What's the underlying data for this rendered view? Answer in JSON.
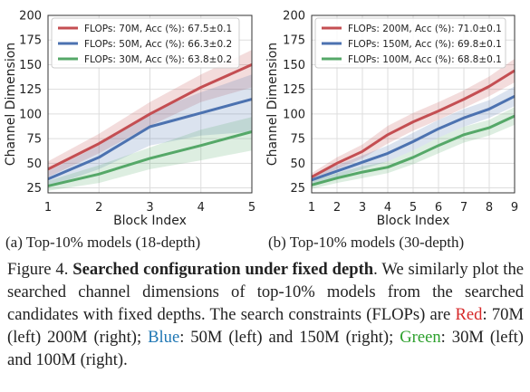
{
  "chart_data": [
    {
      "type": "line",
      "xlabel": "Block Index",
      "ylabel": "Channel Dimension",
      "x": [
        1,
        2,
        3,
        4,
        5
      ],
      "xlim": [
        1,
        5
      ],
      "ylim": [
        20,
        200
      ],
      "yticks": [
        25,
        50,
        75,
        100,
        125,
        150,
        175,
        200
      ],
      "grid": true,
      "legend": "top-left",
      "series": [
        {
          "name": "FLOPs: 70M, Acc (%): 67.5±0.1",
          "color": "#c44e52",
          "values": [
            44,
            70,
            100,
            127,
            150
          ],
          "lower": [
            36,
            60,
            88,
            112,
            127
          ],
          "upper": [
            52,
            80,
            112,
            140,
            165
          ]
        },
        {
          "name": "FLOPs: 50M, Acc (%): 66.3±0.2",
          "color": "#4c72b0",
          "values": [
            34,
            56,
            87,
            101,
            115
          ],
          "lower": [
            26,
            44,
            68,
            78,
            82
          ],
          "upper": [
            42,
            68,
            102,
            122,
            140
          ]
        },
        {
          "name": "FLOPs: 30M, Acc (%): 63.8±0.2",
          "color": "#55a868",
          "values": [
            27,
            39,
            55,
            68,
            82
          ],
          "lower": [
            22,
            30,
            44,
            53,
            63
          ],
          "upper": [
            32,
            48,
            66,
            84,
            97
          ]
        }
      ]
    },
    {
      "type": "line",
      "xlabel": "Block Index",
      "ylabel": "Channel Dimension",
      "x": [
        1,
        2,
        3,
        4,
        5,
        6,
        7,
        8,
        9
      ],
      "xlim": [
        1,
        9
      ],
      "ylim": [
        20,
        200
      ],
      "yticks": [
        25,
        50,
        75,
        100,
        125,
        150,
        175,
        200
      ],
      "grid": true,
      "legend": "top-left",
      "series": [
        {
          "name": "FLOPs: 200M, Acc (%): 71.0±0.1",
          "color": "#c44e52",
          "values": [
            36,
            50,
            62,
            79,
            92,
            103,
            115,
            128,
            144
          ],
          "lower": [
            32,
            44,
            55,
            70,
            83,
            94,
            106,
            118,
            132
          ],
          "upper": [
            40,
            56,
            69,
            88,
            101,
            112,
            124,
            138,
            156
          ]
        },
        {
          "name": "FLOPs: 150M, Acc (%): 69.8±0.1",
          "color": "#4c72b0",
          "values": [
            33,
            42,
            51,
            60,
            72,
            85,
            96,
            105,
            118
          ],
          "lower": [
            29,
            36,
            44,
            52,
            63,
            76,
            87,
            96,
            108
          ],
          "upper": [
            37,
            48,
            58,
            68,
            81,
            94,
            105,
            114,
            128
          ]
        },
        {
          "name": "FLOPs: 100M, Acc (%): 68.8±0.1",
          "color": "#55a868",
          "values": [
            28,
            35,
            41,
            46,
            56,
            68,
            79,
            86,
            98
          ],
          "lower": [
            24,
            30,
            35,
            40,
            49,
            60,
            71,
            78,
            89
          ],
          "upper": [
            32,
            40,
            47,
            52,
            63,
            76,
            87,
            94,
            107
          ]
        }
      ]
    }
  ],
  "subcaptions": {
    "a": "(a) Top-10% models (18-depth)",
    "b": "(b) Top-10% models (30-depth)"
  },
  "caption": {
    "label": "Figure 4.",
    "title": "Searched configuration under fixed depth",
    "body1": ". We similarly plot the searched channel dimensions of top-10% models from the searched candidates with fixed depths. The search constraints (FLOPs) are ",
    "red_word": "Red",
    "red_text": ": 70M (left) 200M (right); ",
    "blue_word": "Blue",
    "blue_text": ": 50M (left) and 150M (right); ",
    "green_word": "Green",
    "green_text": ": 30M (left) and 100M (right)."
  }
}
